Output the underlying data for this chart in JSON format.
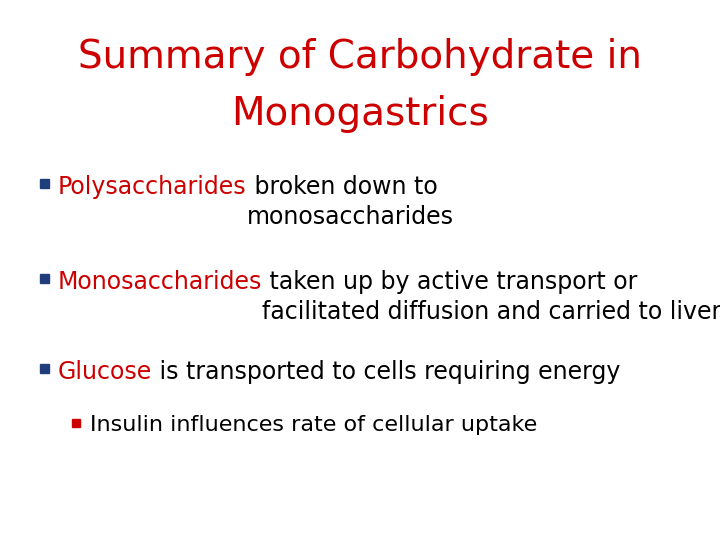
{
  "title_line1": "Summary of Carbohydrate in",
  "title_line2": "Monogastrics",
  "title_color": "#cc0000",
  "title_fontsize": 28,
  "background_color": "#ffffff",
  "bullet_color": "#1f3d7a",
  "sub_bullet_color": "#cc0000",
  "text_color": "#000000",
  "highlight_color": "#cc0000",
  "body_fontsize": 17,
  "sub_fontsize": 16,
  "items": [
    {
      "highlight": "Polysaccharides",
      "rest": " broken down to\nmonosaccharides",
      "level": 0
    },
    {
      "highlight": "Monosaccharides",
      "rest": " taken up by active transport or\nfacilitated diffusion and carried to liver",
      "level": 0
    },
    {
      "highlight": "Glucose",
      "rest": " is transported to cells requiring energy",
      "level": 0
    },
    {
      "highlight": "",
      "rest": "Insulin influences rate of cellular uptake",
      "level": 1
    }
  ]
}
